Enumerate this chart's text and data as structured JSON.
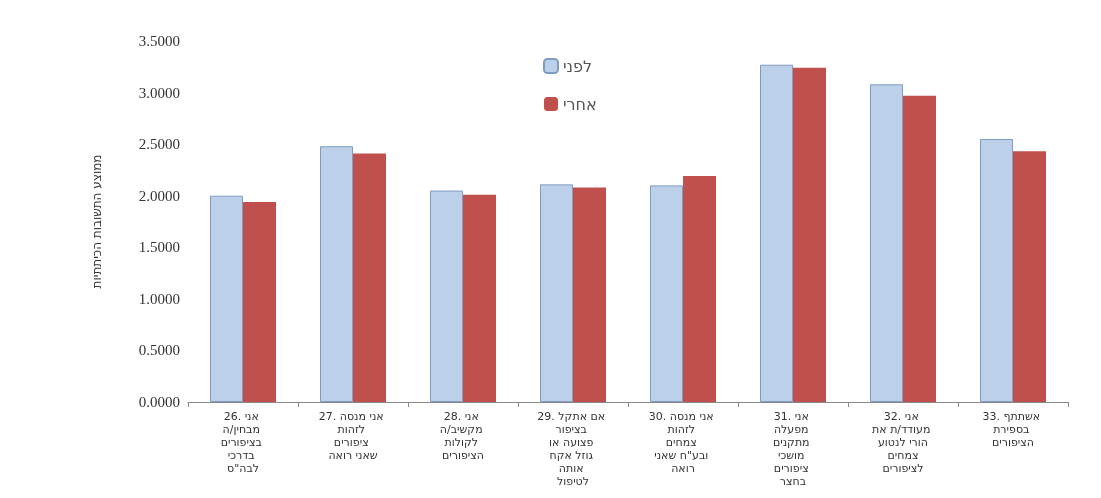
{
  "chart_data": {
    "type": "bar",
    "ylabel": "ממוצע התשובות הכיתתיות",
    "categories": [
      "26. אני מבחין/ה בציפורים בדרכי לבה\"ס",
      "27. אני מנסה לזהות ציפורים שאני רואה",
      "28. אני מקשיב/ה לקולות הציפורים",
      "29. אם אתקל בציפור פצועה או גוזל אקח אותה לטיפול",
      "30. אני מנסה לזהות צמחים ובע\"ח שאני רואה",
      "31. אני מפעלה מתקנים מושכי ציפורים בחצר",
      "32. אני מעודד/ת את הורי לנטוע צמחים לציפורים",
      "33. אשתתף בספירת הציפורים"
    ],
    "series": [
      {
        "name": "לפני",
        "color": "#bcd0ea",
        "values": [
          2.0,
          2.48,
          2.05,
          2.11,
          2.1,
          3.27,
          3.08,
          2.55
        ]
      },
      {
        "name": "אחרי",
        "color": "#c0504d",
        "values": [
          1.94,
          2.41,
          2.01,
          2.08,
          2.19,
          3.24,
          2.97,
          2.43
        ]
      }
    ],
    "ylim": [
      0,
      3.5
    ],
    "yticks": [
      {
        "value": 0,
        "label": "0.0000"
      },
      {
        "value": 0.5,
        "label": "0.5000"
      },
      {
        "value": 1,
        "label": "1.0000"
      },
      {
        "value": 1.5,
        "label": "1.5000"
      },
      {
        "value": 2,
        "label": "2.0000"
      },
      {
        "value": 2.5,
        "label": "2.5000"
      },
      {
        "value": 3,
        "label": "3.0000"
      },
      {
        "value": 3.5,
        "label": "3.5000"
      }
    ],
    "grid": false,
    "legend": "top"
  }
}
